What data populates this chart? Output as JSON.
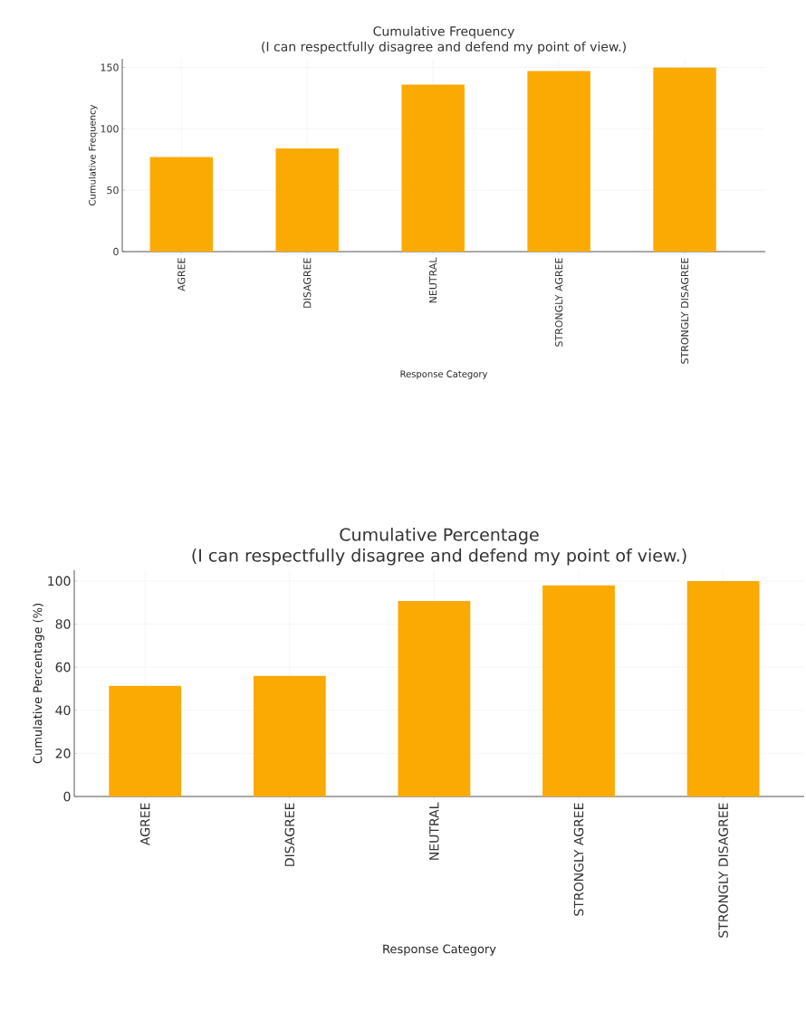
{
  "chart_data": [
    {
      "type": "bar",
      "title": "Cumulative Frequency",
      "subtitle": "(I can respectfully disagree and defend my point of view.)",
      "xlabel": "Response Category",
      "ylabel": "Cumulative Frequency",
      "categories": [
        "AGREE",
        "DISAGREE",
        "NEUTRAL",
        "STRONGLY AGREE",
        "STRONGLY DISAGREE"
      ],
      "values": [
        77,
        84,
        136,
        147,
        150
      ],
      "color": "#fbaa04",
      "ylim": [
        0,
        157
      ],
      "yticks": [
        0,
        50,
        100,
        150
      ],
      "grid": true
    },
    {
      "type": "bar",
      "title": "Cumulative Percentage",
      "subtitle": "(I can respectfully disagree and defend my point of view.)",
      "xlabel": "Response Category",
      "ylabel": "Cumulative Percentage (%)",
      "categories": [
        "AGREE",
        "DISAGREE",
        "NEUTRAL",
        "STRONGLY AGREE",
        "STRONGLY DISAGREE"
      ],
      "values": [
        51.3,
        56,
        90.7,
        98,
        100
      ],
      "color": "#fbaa04",
      "ylim": [
        0,
        105
      ],
      "yticks": [
        0,
        20,
        40,
        60,
        80,
        100
      ],
      "grid": true
    }
  ]
}
